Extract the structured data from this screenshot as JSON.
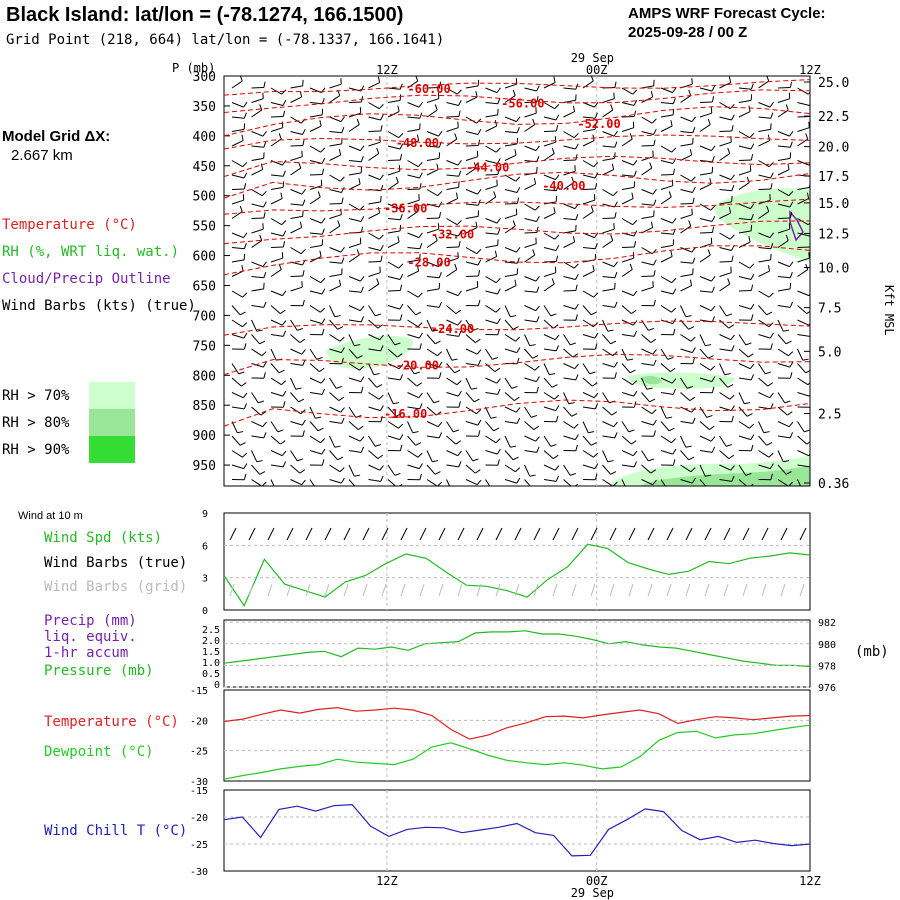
{
  "header": {
    "title": "Black Island:  lat/lon = (-78.1274, 166.1500)",
    "grid_point": "Grid Point (218, 664) lat/lon = (-78.1337, 166.1641)",
    "cycle_line1": "AMPS WRF Forecast Cycle:",
    "cycle_line2": "2025-09-28 / 00  Z"
  },
  "model_grid": {
    "line1": "Model Grid ΔX:",
    "line2": "2.667 km"
  },
  "legend": {
    "temperature": "Temperature (°C)",
    "rh": "RH (%, WRT liq. wat.)",
    "cloud": "Cloud/Precip Outline",
    "wind_barbs": "Wind Barbs (kts) (true)",
    "rh70": "RH > 70%",
    "rh80": "RH > 80%",
    "rh90": "RH > 90%",
    "colors": {
      "rh70": "#ccffcc",
      "rh80": "#99e699",
      "rh90": "#33dd33",
      "temp": "#dd0000",
      "cloud": "#7722aa"
    }
  },
  "panel_labels": {
    "wind10m": "Wind at 10 m",
    "wind_spd": "Wind Spd (kts)",
    "wind_barbs_true": "Wind Barbs (true)",
    "wind_barbs_grid": "Wind Barbs (grid)",
    "precip": "Precip (mm)",
    "liq_equiv": "liq. equiv.",
    "accum": "1-hr accum",
    "pressure": "Pressure (mb)",
    "pressure_unit": "(mb)",
    "temperature": "Temperature (°C)",
    "dewpoint": "Dewpoint (°C)",
    "wind_chill": "Wind Chill T (°C)"
  },
  "chart_data": [
    {
      "type": "cross-section",
      "title": "Vertical time section",
      "x_ticks_top": [
        "12Z",
        "00Z",
        "12Z"
      ],
      "date_label": "29 Sep",
      "y_axis_label": "P (mb)",
      "pressure_levels": [
        300,
        350,
        400,
        450,
        500,
        550,
        600,
        650,
        700,
        750,
        800,
        850,
        900,
        950
      ],
      "plim": [
        300,
        985
      ],
      "right_axis_label": "Kft MSL",
      "right_ticks": [
        {
          "p": 310,
          "label": "25.0"
        },
        {
          "p": 367,
          "label": "22.5"
        },
        {
          "p": 418,
          "label": "20.0"
        },
        {
          "p": 467,
          "label": "17.5"
        },
        {
          "p": 512,
          "label": "15.0"
        },
        {
          "p": 563,
          "label": "12.5"
        },
        {
          "p": 620,
          "label": "10.0"
        },
        {
          "p": 687,
          "label": "7.5"
        },
        {
          "p": 760,
          "label": "5.0"
        },
        {
          "p": 864,
          "label": "2.5"
        },
        {
          "p": 980,
          "label": "0.36"
        }
      ],
      "temperature_contours": [
        {
          "label": "-60.00",
          "at": [
            0.35,
            322
          ]
        },
        {
          "label": "-56.00",
          "at": [
            0.51,
            346
          ]
        },
        {
          "label": "-52.00",
          "at": [
            0.64,
            380
          ]
        },
        {
          "label": "-48.00",
          "at": [
            0.33,
            412
          ]
        },
        {
          "label": "-44.00",
          "at": [
            0.45,
            453
          ]
        },
        {
          "label": "-40.00",
          "at": [
            0.58,
            484
          ]
        },
        {
          "label": "-36.00",
          "at": [
            0.31,
            521
          ]
        },
        {
          "label": "-32.00",
          "at": [
            0.39,
            565
          ]
        },
        {
          "label": "-28.00",
          "at": [
            0.35,
            612
          ]
        },
        {
          "label": "-24.00",
          "at": [
            0.39,
            723
          ]
        },
        {
          "label": "-20.00",
          "at": [
            0.33,
            784
          ]
        },
        {
          "label": "-16.00",
          "at": [
            0.31,
            865
          ]
        }
      ]
    },
    {
      "type": "line",
      "title": "Wind at 10 m",
      "ylim": [
        0,
        9
      ],
      "y_ticks": [
        0,
        3,
        6,
        9
      ],
      "series": [
        {
          "name": "Wind Spd (kts)",
          "color": "#22bb22",
          "values": [
            3.2,
            0.4,
            4.7,
            2.4,
            1.8,
            1.2,
            2.6,
            3.2,
            4.3,
            5.2,
            4.8,
            3.5,
            2.3,
            2.2,
            1.8,
            1.2,
            2.8,
            4.0,
            6.1,
            5.7,
            4.4,
            3.8,
            3.3,
            3.6,
            4.5,
            4.3,
            4.8,
            5.0,
            5.3,
            5.1
          ]
        }
      ]
    },
    {
      "type": "line",
      "title": "Precip / Pressure",
      "left_ticks": [
        "0",
        "0.5",
        "1.0",
        "1.5",
        "2.0",
        "2.5"
      ],
      "right_ticks": [
        "976",
        "978",
        "980",
        "982"
      ],
      "ylim_pressure": [
        976,
        982.2
      ],
      "series": [
        {
          "name": "Pressure (mb)",
          "color": "#22bb22",
          "values": [
            978.2,
            978.4,
            978.6,
            978.8,
            979.0,
            979.2,
            979.3,
            978.8,
            979.6,
            979.5,
            979.7,
            979.4,
            980.0,
            980.1,
            980.2,
            981.0,
            981.1,
            981.1,
            981.2,
            980.9,
            980.9,
            980.7,
            980.4,
            980.0,
            980.2,
            979.9,
            979.7,
            979.6,
            979.3,
            979.0,
            978.7,
            978.4,
            978.2,
            978.0,
            978.0,
            977.9
          ]
        }
      ]
    },
    {
      "type": "line",
      "title": "Temperature / Dewpoint",
      "ylim": [
        -30,
        -15
      ],
      "y_ticks": [
        -30,
        -25,
        -20,
        -15
      ],
      "series": [
        {
          "name": "Temperature (°C)",
          "color": "#dd2222",
          "values": [
            -20.2,
            -19.8,
            -19.0,
            -18.3,
            -18.8,
            -18.2,
            -17.9,
            -18.5,
            -18.3,
            -18.0,
            -18.3,
            -19.2,
            -21.5,
            -23.1,
            -22.4,
            -21.2,
            -20.4,
            -19.4,
            -19.3,
            -19.6,
            -19.1,
            -18.7,
            -18.3,
            -18.9,
            -20.5,
            -19.9,
            -19.4,
            -19.6,
            -19.9,
            -19.6,
            -19.3,
            -19.2
          ]
        },
        {
          "name": "Dewpoint (°C)",
          "color": "#22cc22",
          "values": [
            -29.7,
            -29.1,
            -28.6,
            -28.0,
            -27.6,
            -27.3,
            -26.4,
            -26.9,
            -27.1,
            -27.3,
            -26.4,
            -24.4,
            -23.7,
            -24.7,
            -25.8,
            -26.6,
            -27.0,
            -27.3,
            -27.0,
            -27.4,
            -28.0,
            -27.7,
            -26.0,
            -23.3,
            -22.0,
            -21.8,
            -22.9,
            -22.4,
            -22.2,
            -21.7,
            -21.2,
            -20.8
          ]
        }
      ]
    },
    {
      "type": "line",
      "title": "Wind Chill",
      "ylim": [
        -30,
        -15
      ],
      "y_ticks": [
        -30,
        -25,
        -20,
        -15
      ],
      "series": [
        {
          "name": "Wind Chill T (°C)",
          "color": "#2222bb",
          "values": [
            -20.5,
            -20.0,
            -23.8,
            -18.6,
            -18.0,
            -18.9,
            -17.9,
            -17.7,
            -21.7,
            -23.6,
            -22.3,
            -21.9,
            -22.0,
            -22.9,
            -22.4,
            -21.9,
            -21.2,
            -22.9,
            -23.4,
            -27.2,
            -27.1,
            -22.3,
            -20.5,
            -18.5,
            -19.0,
            -22.5,
            -24.2,
            -23.6,
            -24.7,
            -24.3,
            -24.9,
            -25.3,
            -25.0
          ]
        }
      ]
    }
  ]
}
